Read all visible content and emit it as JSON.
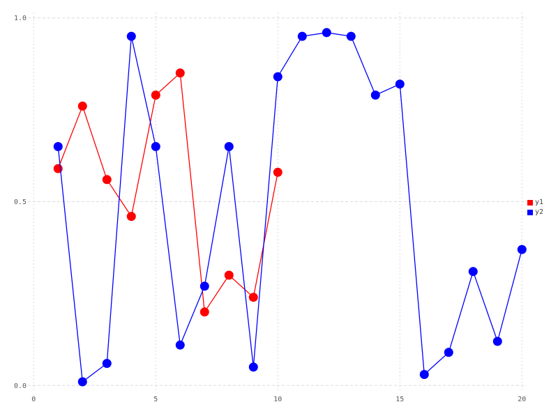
{
  "chart_data": {
    "type": "line",
    "title": "",
    "xlabel": "",
    "ylabel": "",
    "xlim": [
      0,
      20
    ],
    "ylim": [
      0.0,
      1.0
    ],
    "grid": true,
    "background_color": "#ffffff",
    "grid_color": "#d9d9e2",
    "tick_label_color": "#595959",
    "x_ticks": [
      0,
      5,
      10,
      15,
      20
    ],
    "x_tick_labels": [
      "0",
      "5",
      "10",
      "15",
      "20"
    ],
    "y_ticks": [
      0.0,
      0.5,
      1.0
    ],
    "y_tick_labels": [
      "0.0",
      "0.5",
      "1.0"
    ],
    "marker": "circle",
    "series": [
      {
        "name": "y1",
        "color": "#ff0000",
        "x": [
          1,
          2,
          3,
          4,
          5,
          6,
          7,
          8,
          9,
          10
        ],
        "values": [
          0.59,
          0.76,
          0.56,
          0.46,
          0.79,
          0.85,
          0.2,
          0.3,
          0.24,
          0.58
        ]
      },
      {
        "name": "y2",
        "color": "#0000ff",
        "x": [
          1,
          2,
          3,
          4,
          5,
          6,
          7,
          8,
          9,
          10,
          11,
          12,
          13,
          14,
          15,
          16,
          17,
          18,
          19,
          20
        ],
        "values": [
          0.65,
          0.01,
          0.06,
          0.95,
          0.65,
          0.11,
          0.27,
          0.65,
          0.05,
          0.84,
          0.95,
          0.96,
          0.95,
          0.79,
          0.82,
          0.03,
          0.09,
          0.31,
          0.12,
          0.37
        ]
      }
    ],
    "legend": {
      "position": "right",
      "entries": [
        {
          "label": "y1",
          "color": "#ff0000"
        },
        {
          "label": "y2",
          "color": "#0000ff"
        }
      ]
    }
  }
}
